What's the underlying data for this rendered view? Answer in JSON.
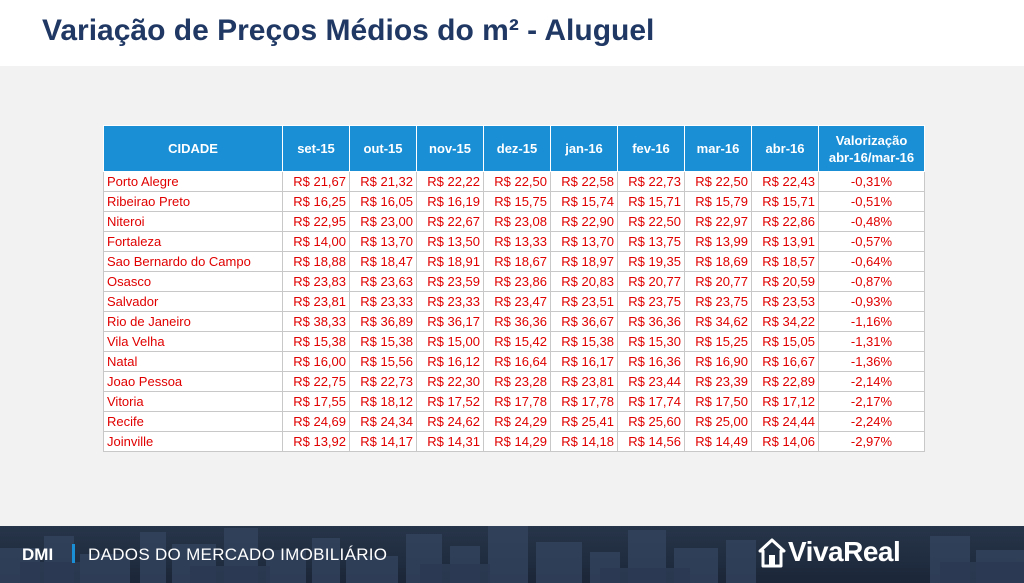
{
  "title": "Variação de Preços Médios do m² - Aluguel",
  "table": {
    "headers": [
      "CIDADE",
      "set-15",
      "out-15",
      "nov-15",
      "dez-15",
      "jan-16",
      "fev-16",
      "mar-16",
      "abr-16"
    ],
    "last_header_line1": "Valorização",
    "last_header_line2": "abr-16/mar-16",
    "rows": [
      [
        "Porto Alegre",
        "R$ 21,67",
        "R$ 21,32",
        "R$ 22,22",
        "R$ 22,50",
        "R$ 22,58",
        "R$ 22,73",
        "R$ 22,50",
        "R$ 22,43",
        "-0,31%"
      ],
      [
        "Ribeirao Preto",
        "R$ 16,25",
        "R$ 16,05",
        "R$ 16,19",
        "R$ 15,75",
        "R$ 15,74",
        "R$ 15,71",
        "R$ 15,79",
        "R$ 15,71",
        "-0,51%"
      ],
      [
        "Niteroi",
        "R$ 22,95",
        "R$ 23,00",
        "R$ 22,67",
        "R$ 23,08",
        "R$ 22,90",
        "R$ 22,50",
        "R$ 22,97",
        "R$ 22,86",
        "-0,48%"
      ],
      [
        "Fortaleza",
        "R$ 14,00",
        "R$ 13,70",
        "R$ 13,50",
        "R$ 13,33",
        "R$ 13,70",
        "R$ 13,75",
        "R$ 13,99",
        "R$ 13,91",
        "-0,57%"
      ],
      [
        "Sao Bernardo do Campo",
        "R$ 18,88",
        "R$ 18,47",
        "R$ 18,91",
        "R$ 18,67",
        "R$ 18,97",
        "R$ 19,35",
        "R$ 18,69",
        "R$ 18,57",
        "-0,64%"
      ],
      [
        "Osasco",
        "R$ 23,83",
        "R$ 23,63",
        "R$ 23,59",
        "R$ 23,86",
        "R$ 20,83",
        "R$ 20,77",
        "R$ 20,77",
        "R$ 20,59",
        "-0,87%"
      ],
      [
        "Salvador",
        "R$ 23,81",
        "R$ 23,33",
        "R$ 23,33",
        "R$ 23,47",
        "R$ 23,51",
        "R$ 23,75",
        "R$ 23,75",
        "R$ 23,53",
        "-0,93%"
      ],
      [
        "Rio de Janeiro",
        "R$ 38,33",
        "R$ 36,89",
        "R$ 36,17",
        "R$ 36,36",
        "R$ 36,67",
        "R$ 36,36",
        "R$ 34,62",
        "R$ 34,22",
        "-1,16%"
      ],
      [
        "Vila Velha",
        "R$ 15,38",
        "R$ 15,38",
        "R$ 15,00",
        "R$ 15,42",
        "R$ 15,38",
        "R$ 15,30",
        "R$ 15,25",
        "R$ 15,05",
        "-1,31%"
      ],
      [
        "Natal",
        "R$ 16,00",
        "R$ 15,56",
        "R$ 16,12",
        "R$ 16,64",
        "R$ 16,17",
        "R$ 16,36",
        "R$ 16,90",
        "R$ 16,67",
        "-1,36%"
      ],
      [
        "Joao Pessoa",
        "R$ 22,75",
        "R$ 22,73",
        "R$ 22,30",
        "R$ 23,28",
        "R$ 23,81",
        "R$ 23,44",
        "R$ 23,39",
        "R$ 22,89",
        "-2,14%"
      ],
      [
        "Vitoria",
        "R$ 17,55",
        "R$ 18,12",
        "R$ 17,52",
        "R$ 17,78",
        "R$ 17,78",
        "R$ 17,74",
        "R$ 17,50",
        "R$ 17,12",
        "-2,17%"
      ],
      [
        "Recife",
        "R$ 24,69",
        "R$ 24,34",
        "R$ 24,62",
        "R$ 24,29",
        "R$ 25,41",
        "R$ 25,60",
        "R$ 25,00",
        "R$ 24,44",
        "-2,24%"
      ],
      [
        "Joinville",
        "R$ 13,92",
        "R$ 14,17",
        "R$ 14,31",
        "R$ 14,29",
        "R$ 14,18",
        "R$ 14,56",
        "R$ 14,49",
        "R$ 14,06",
        "-2,97%"
      ]
    ]
  },
  "footer": {
    "dmi": "DMI",
    "label": "DADOS DO MERCADO IMOBILIÁRIO",
    "logo_icon": "house-icon",
    "logo_text": "VivaReal"
  },
  "colors": {
    "title": "#1f3864",
    "header_bg": "#1a8fd6",
    "cell_text": "#e00000",
    "footer_bg": "#1b2638"
  }
}
